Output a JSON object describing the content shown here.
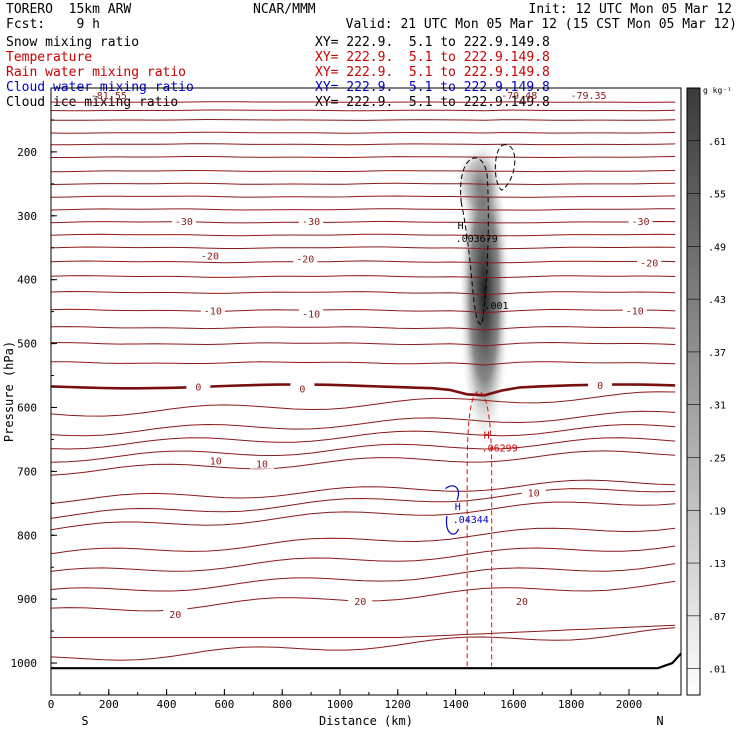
{
  "header": {
    "model": "TORERO  15km ARW",
    "forecast": "Fcst:    9 h",
    "center": "NCAR/MMM",
    "init": "Init: 12 UTC Mon 05 Mar 12",
    "valid": "Valid: 21 UTC Mon 05 Mar 12 (15 CST Mon 05 Mar 12)"
  },
  "legend": [
    {
      "name": "Snow mixing ratio",
      "xy": "XY= 222.9.  5.1 to 222.9.149.8",
      "color": "#000000",
      "xy_color": "#000000"
    },
    {
      "name": "Temperature",
      "xy": "XY= 222.9.  5.1 to 222.9.149.8",
      "color": "#cc0000",
      "xy_color": "#cc0000"
    },
    {
      "name": "Rain water mixing ratio",
      "xy": "XY= 222.9.  5.1 to 222.9.149.8",
      "color": "#cc0000",
      "xy_color": "#cc0000"
    },
    {
      "name": "Cloud water mixing ratio",
      "xy": "XY= 222.9.  5.1 to 222.9.149.8",
      "color": "#0000cc",
      "xy_color": "#0000cc"
    },
    {
      "name": "Cloud ice mixing ratio",
      "xy": "XY= 222.9.  5.1 to 222.9.149.8",
      "color": "#000000",
      "xy_color": "#000000"
    }
  ],
  "chart_data": {
    "type": "cross-section",
    "xlabel": "Distance (km)",
    "ylabel": "Pressure (hPa)",
    "xlim": [
      0,
      2180
    ],
    "ylim": [
      1050,
      100
    ],
    "x_ticks": [
      0,
      200,
      400,
      600,
      800,
      1000,
      1200,
      1400,
      1600,
      1800,
      2000
    ],
    "y_ticks": [
      200,
      300,
      400,
      500,
      600,
      700,
      800,
      900,
      1000
    ],
    "x_end_labels": {
      "left": "S",
      "right": "N"
    },
    "colorbar": {
      "unit": "g kg⁻¹",
      "levels": [
        ".01",
        ".07",
        ".13",
        ".19",
        ".25",
        ".31",
        ".37",
        ".43",
        ".49",
        ".55",
        ".61"
      ]
    },
    "top_labels": [
      "-81.55",
      "-79.48",
      "-79.35"
    ],
    "temperature_labels": [
      {
        "value": "-30",
        "x": 460,
        "p": 308
      },
      {
        "value": "-30",
        "x": 900,
        "p": 308
      },
      {
        "value": "-30",
        "x": 2040,
        "p": 308
      },
      {
        "value": "-20",
        "x": 550,
        "p": 362
      },
      {
        "value": "-20",
        "x": 880,
        "p": 367
      },
      {
        "value": "-20",
        "x": 2070,
        "p": 373
      },
      {
        "value": "-10",
        "x": 560,
        "p": 448
      },
      {
        "value": "-10",
        "x": 900,
        "p": 453
      },
      {
        "value": "-10",
        "x": 2020,
        "p": 448
      },
      {
        "value": "0",
        "x": 510,
        "p": 567
      },
      {
        "value": "0",
        "x": 870,
        "p": 570
      },
      {
        "value": "0",
        "x": 1900,
        "p": 565
      },
      {
        "value": "10",
        "x": 570,
        "p": 683
      },
      {
        "value": "10",
        "x": 730,
        "p": 688
      },
      {
        "value": "10",
        "x": 1670,
        "p": 733
      },
      {
        "value": "20",
        "x": 430,
        "p": 923
      },
      {
        "value": "20",
        "x": 1070,
        "p": 903
      },
      {
        "value": "20",
        "x": 1630,
        "p": 903
      }
    ],
    "highs": [
      {
        "field": "cloud ice",
        "label": "H",
        "value": ".003679",
        "x": 1400,
        "p": 327,
        "color": "#000000"
      },
      {
        "field": "snow",
        "label": "",
        "value": ".001",
        "x": 1500,
        "p": 432,
        "color": "#000000"
      },
      {
        "field": "rain",
        "label": "H",
        "value": ".06299",
        "x": 1490,
        "p": 655,
        "color": "#cc0000"
      },
      {
        "field": "cloud water",
        "label": "H",
        "value": ".04344",
        "x": 1390,
        "p": 767,
        "color": "#0000cc"
      }
    ]
  }
}
